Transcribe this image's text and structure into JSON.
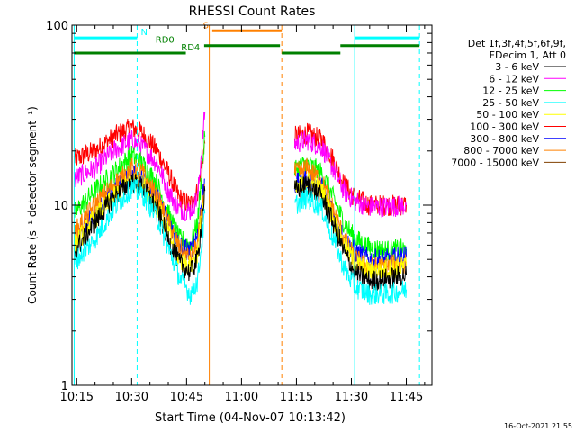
{
  "chart_data": {
    "type": "line",
    "title": "RHESSI Count Rates",
    "xlabel": "Start Time (04-Nov-07 10:13:42)",
    "ylabel": "Count Rate (s⁻¹ detector segment⁻¹)",
    "y_scale": "log",
    "ylim": [
      1,
      100
    ],
    "x_range_minutes": [
      "10:13:42",
      "11:52:00"
    ],
    "x_ticks": [
      {
        "label": "10:15",
        "min": 75
      },
      {
        "label": "10:30",
        "min": 90
      },
      {
        "label": "10:45",
        "min": 105
      },
      {
        "label": "11:00",
        "min": 120
      },
      {
        "label": "11:15",
        "min": 135
      },
      {
        "label": "11:30",
        "min": 150
      },
      {
        "label": "11:45",
        "min": 165
      }
    ],
    "y_ticks": [
      {
        "label": "1",
        "v": 1
      },
      {
        "label": "10",
        "v": 10
      },
      {
        "label": "100",
        "v": 100
      }
    ],
    "legend": {
      "placement": "right",
      "header": [
        "Det 1f,3f,4f,5f,6f,9f,",
        "FDecim 1, Att 0"
      ],
      "entries": [
        {
          "label": "3 - 6 keV",
          "color": "#000000"
        },
        {
          "label": "6 - 12 keV",
          "color": "#ff00ff"
        },
        {
          "label": "12 - 25 keV",
          "color": "#00ff00"
        },
        {
          "label": "25 - 50 keV",
          "color": "#00ffff"
        },
        {
          "label": "50 - 100 keV",
          "color": "#ffff00"
        },
        {
          "label": "100 - 300 keV",
          "color": "#ff0000"
        },
        {
          "label": "300 - 800 keV",
          "color": "#0000ff"
        },
        {
          "label": "800 - 7000 keV",
          "color": "#ff8000"
        },
        {
          "label": "7000 - 15000 keV",
          "color": "#804000"
        }
      ]
    },
    "series": [
      {
        "name": "100 - 300 keV",
        "color": "#ff0000",
        "segments": [
          [
            [
              74.3,
              18
            ],
            [
              80,
              20
            ],
            [
              85,
              24
            ],
            [
              90,
              27
            ],
            [
              93,
              25
            ],
            [
              97,
              20
            ],
            [
              100,
              15
            ],
            [
              103,
              11
            ],
            [
              106,
              10
            ],
            [
              108,
              12
            ],
            [
              110,
              22
            ]
          ],
          [
            [
              134.5,
              24
            ],
            [
              138,
              25
            ],
            [
              142,
              23
            ],
            [
              145,
              18
            ],
            [
              148,
              13
            ],
            [
              151,
              11
            ],
            [
              155,
              10
            ],
            [
              160,
              10
            ],
            [
              165,
              10
            ]
          ]
        ]
      },
      {
        "name": "6 - 12 keV",
        "color": "#ff00ff",
        "segments": [
          [
            [
              74.3,
              14
            ],
            [
              80,
              16
            ],
            [
              85,
              20
            ],
            [
              90,
              23
            ],
            [
              93,
              21
            ],
            [
              97,
              17
            ],
            [
              100,
              12
            ],
            [
              103,
              9.5
            ],
            [
              106,
              9.3
            ],
            [
              108,
              11
            ],
            [
              110,
              33
            ]
          ],
          [
            [
              134.5,
              22
            ],
            [
              138,
              23
            ],
            [
              142,
              21
            ],
            [
              145,
              16
            ],
            [
              148,
              12
            ],
            [
              151,
              10.5
            ],
            [
              155,
              9.8
            ],
            [
              160,
              9.8
            ],
            [
              165,
              10
            ]
          ]
        ]
      },
      {
        "name": "12 - 25 keV",
        "color": "#00ff00",
        "segments": [
          [
            [
              74.3,
              9
            ],
            [
              80,
              12
            ],
            [
              85,
              15
            ],
            [
              90,
              19
            ],
            [
              93,
              17
            ],
            [
              97,
              13
            ],
            [
              100,
              9
            ],
            [
              103,
              6.5
            ],
            [
              106,
              6
            ],
            [
              108,
              8
            ],
            [
              110,
              24
            ]
          ],
          [
            [
              134.5,
              16
            ],
            [
              138,
              17
            ],
            [
              142,
              15
            ],
            [
              145,
              11
            ],
            [
              148,
              8
            ],
            [
              151,
              6.5
            ],
            [
              155,
              5.8
            ],
            [
              160,
              5.6
            ],
            [
              165,
              5.7
            ]
          ]
        ]
      },
      {
        "name": "300 - 800 keV",
        "color": "#0000ff",
        "segments": [
          [
            [
              74.3,
              6.5
            ],
            [
              80,
              9
            ],
            [
              85,
              12
            ],
            [
              90,
              15
            ],
            [
              93,
              14
            ],
            [
              97,
              11
            ],
            [
              100,
              8
            ],
            [
              103,
              6
            ],
            [
              106,
              5.5
            ],
            [
              108,
              7
            ],
            [
              110,
              14
            ]
          ],
          [
            [
              134.5,
              13
            ],
            [
              138,
              14
            ],
            [
              142,
              12.5
            ],
            [
              145,
              9
            ],
            [
              148,
              6.5
            ],
            [
              151,
              5.5
            ],
            [
              155,
              5
            ],
            [
              160,
              5
            ],
            [
              165,
              5.2
            ]
          ]
        ]
      },
      {
        "name": "800 - 7000 keV",
        "color": "#ff8000",
        "segments": [
          [
            [
              74.3,
              7
            ],
            [
              80,
              10
            ],
            [
              85,
              13
            ],
            [
              90,
              16
            ],
            [
              93,
              15
            ],
            [
              97,
              11
            ],
            [
              100,
              8
            ],
            [
              103,
              5.8
            ],
            [
              106,
              5
            ],
            [
              108,
              6
            ],
            [
              110,
              13
            ]
          ],
          [
            [
              134.5,
              15
            ],
            [
              138,
              16
            ],
            [
              142,
              13.5
            ],
            [
              145,
              9.5
            ],
            [
              148,
              6.5
            ],
            [
              151,
              5
            ],
            [
              155,
              4.5
            ],
            [
              160,
              4.6
            ],
            [
              165,
              4.8
            ]
          ]
        ]
      },
      {
        "name": "50 - 100 keV",
        "color": "#ffff00",
        "segments": [
          [
            [
              74.3,
              6
            ],
            [
              80,
              8.5
            ],
            [
              85,
              11
            ],
            [
              90,
              14
            ],
            [
              93,
              13
            ],
            [
              97,
              10
            ],
            [
              100,
              7
            ],
            [
              103,
              5
            ],
            [
              106,
              4.6
            ],
            [
              108,
              5.5
            ],
            [
              110,
              12
            ]
          ],
          [
            [
              134.5,
              12
            ],
            [
              138,
              13.5
            ],
            [
              142,
              12
            ],
            [
              145,
              8.5
            ],
            [
              148,
              6
            ],
            [
              151,
              4.8
            ],
            [
              155,
              4.3
            ],
            [
              160,
              4.4
            ],
            [
              165,
              4.6
            ]
          ]
        ]
      },
      {
        "name": "3 - 6 keV",
        "color": "#000000",
        "segments": [
          [
            [
              74.3,
              5.5
            ],
            [
              80,
              8
            ],
            [
              85,
              11
            ],
            [
              90,
              13.5
            ],
            [
              93,
              12.5
            ],
            [
              97,
              9.5
            ],
            [
              100,
              6.5
            ],
            [
              103,
              4.8
            ],
            [
              106,
              4.2
            ],
            [
              108,
              5
            ],
            [
              110,
              12
            ]
          ],
          [
            [
              134.5,
              12
            ],
            [
              138,
              13
            ],
            [
              142,
              11
            ],
            [
              145,
              8
            ],
            [
              148,
              5.5
            ],
            [
              151,
              4.2
            ],
            [
              155,
              3.8
            ],
            [
              160,
              3.9
            ],
            [
              165,
              4.1
            ]
          ]
        ]
      },
      {
        "name": "25 - 50 keV",
        "color": "#00ffff",
        "segments": [
          [
            [
              74.3,
              4.8
            ],
            [
              80,
              6.5
            ],
            [
              85,
              9.5
            ],
            [
              90,
              12.5
            ],
            [
              93,
              11.5
            ],
            [
              97,
              8.5
            ],
            [
              100,
              5.8
            ],
            [
              103,
              4
            ],
            [
              106,
              3.2
            ],
            [
              108,
              3.8
            ],
            [
              110,
              9
            ]
          ],
          [
            [
              134.5,
              10
            ],
            [
              138,
              11
            ],
            [
              142,
              9.5
            ],
            [
              145,
              6.5
            ],
            [
              148,
              4.5
            ],
            [
              151,
              3.5
            ],
            [
              155,
              3.2
            ],
            [
              160,
              3.2
            ],
            [
              165,
              3.4
            ]
          ]
        ]
      }
    ],
    "annotations": {
      "vlines": [
        {
          "min": 74.3,
          "color": "#00ffff",
          "style": "solid"
        },
        {
          "min": 91.5,
          "color": "#00ffff",
          "style": "dashed"
        },
        {
          "min": 111.2,
          "color": "#ff8000",
          "style": "solid"
        },
        {
          "min": 131.0,
          "color": "#ff8000",
          "style": "dashed"
        },
        {
          "min": 150.9,
          "color": "#00ffff",
          "style": "solid"
        },
        {
          "min": 168.6,
          "color": "#00ffff",
          "style": "dashed"
        }
      ],
      "bars": [
        {
          "label": "N",
          "color": "#00ffff",
          "y": 85,
          "ranges": [
            [
              74.3,
              91.5
            ],
            [
              150.9,
              168.6
            ]
          ],
          "label_at": 92.5
        },
        {
          "label": "S",
          "color": "#ff8000",
          "y": 93,
          "ranges": [
            [
              112.0,
              131.0
            ]
          ],
          "label_at": 109.5
        },
        {
          "label": "RD0",
          "color": "#008000",
          "y": 77,
          "ranges": [
            [
              109.8,
              130.5
            ],
            [
              147.0,
              168.6
            ]
          ],
          "label_at": 96.5
        },
        {
          "label": "RD4",
          "color": "#008000",
          "y": 70,
          "ranges": [
            [
              74.3,
              104.8
            ],
            [
              131.0,
              147.0
            ]
          ],
          "label_at": 103.5
        }
      ]
    },
    "footer": "16-Oct-2021 21:55"
  }
}
